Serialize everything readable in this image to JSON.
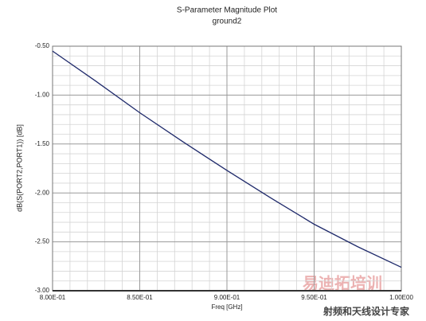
{
  "chart_data": {
    "type": "line",
    "title": "S-Parameter Magnitude Plot",
    "subtitle": "ground2",
    "xlabel": "Freq [GHz]",
    "ylabel": "dB(S(PORT2,PORT1)) [dB]",
    "x": [
      0.8,
      0.825,
      0.85,
      0.875,
      0.9,
      0.925,
      0.95,
      0.975,
      1.0
    ],
    "series": [
      {
        "name": "dB(S(PORT2,PORT1))",
        "color": "#1f2a6b",
        "values": [
          -0.55,
          -0.86,
          -1.18,
          -1.48,
          -1.77,
          -2.05,
          -2.32,
          -2.55,
          -2.76
        ]
      }
    ],
    "xlim": [
      0.8,
      1.0
    ],
    "ylim": [
      -3.0,
      -0.5
    ],
    "xticks": [
      {
        "value": 0.8,
        "label": "8.00E-01"
      },
      {
        "value": 0.85,
        "label": "8.50E-01"
      },
      {
        "value": 0.9,
        "label": "9.00E-01"
      },
      {
        "value": 0.95,
        "label": "9.50E-01"
      },
      {
        "value": 1.0,
        "label": "1.00E00"
      }
    ],
    "yticks": [
      {
        "value": -0.5,
        "label": "-0.50"
      },
      {
        "value": -1.0,
        "label": "-1.00"
      },
      {
        "value": -1.5,
        "label": "-1.50"
      },
      {
        "value": -2.0,
        "label": "-2.00"
      },
      {
        "value": -2.5,
        "label": "-2.50"
      },
      {
        "value": -3.0,
        "label": "-3.00"
      }
    ],
    "xminorticks": [
      0.81,
      0.82,
      0.83,
      0.84,
      0.86,
      0.87,
      0.88,
      0.89,
      0.91,
      0.92,
      0.93,
      0.94,
      0.96,
      0.97,
      0.98,
      0.99
    ],
    "yminorticks": [
      -0.6,
      -0.7,
      -0.8,
      -0.9,
      -1.1,
      -1.2,
      -1.3,
      -1.4,
      -1.6,
      -1.7,
      -1.8,
      -1.9,
      -2.1,
      -2.2,
      -2.3,
      -2.4,
      -2.6,
      -2.7,
      -2.8,
      -2.9
    ],
    "grid": true,
    "watermark": {
      "logo": "易迪拓培训",
      "tagline": "射频和天线设计专家"
    }
  }
}
